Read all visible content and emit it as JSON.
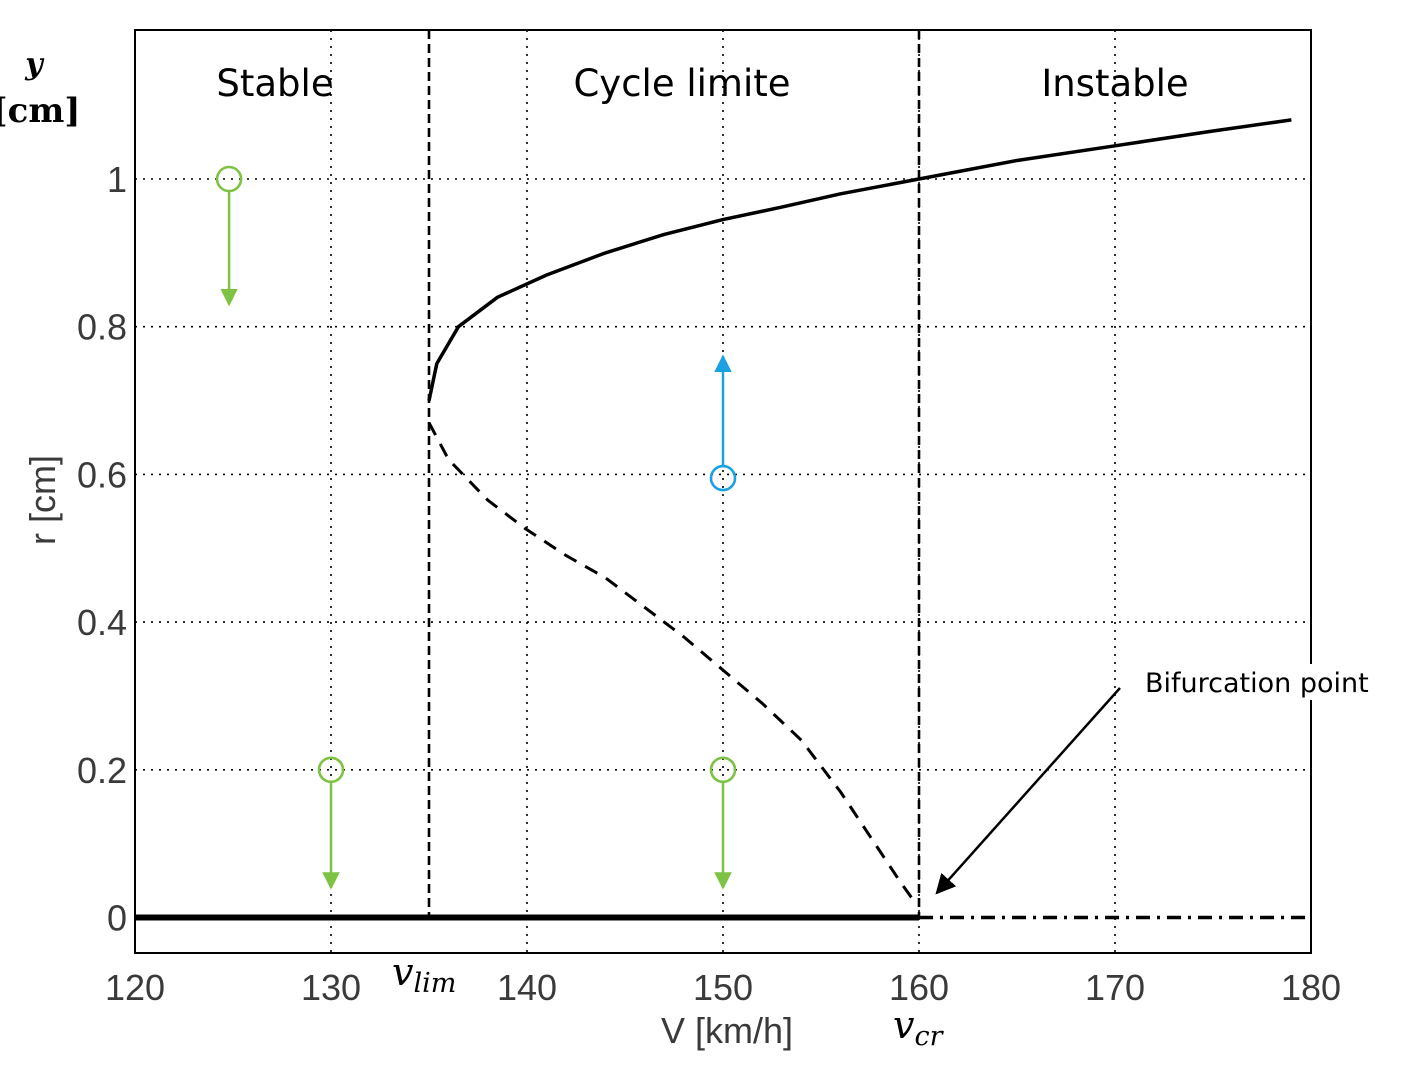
{
  "chart_data": {
    "type": "line",
    "xlabel": "V [km/h]",
    "ylabel": "r [cm]",
    "ylabel_alt": {
      "symbol": "y",
      "unit": "[cm]"
    },
    "xlim": [
      120,
      180
    ],
    "ylim": [
      -0.05,
      1.2
    ],
    "xticks": [
      "120",
      "130",
      "140",
      "150",
      "160",
      "170",
      "180"
    ],
    "yticks": [
      "0",
      "0.2",
      "0.4",
      "0.6",
      "0.8",
      "1"
    ],
    "grid": true,
    "regions": [
      {
        "label": "Stable"
      },
      {
        "label": "Cycle limite"
      },
      {
        "label": "Instable"
      }
    ],
    "v_lim": {
      "value": 135,
      "symbol": "v",
      "subscript": "lim"
    },
    "v_cr": {
      "value": 160,
      "symbol": "v",
      "subscript": "cr"
    },
    "series": [
      {
        "style": "solid",
        "color": "#000000",
        "x": [
          135,
          135.4,
          136.5,
          138.5,
          141,
          144,
          147,
          150,
          153,
          156,
          160,
          165,
          170,
          175,
          179
        ],
        "y": [
          0.7,
          0.75,
          0.8,
          0.84,
          0.87,
          0.9,
          0.925,
          0.945,
          0.962,
          0.98,
          1.0,
          1.025,
          1.045,
          1.065,
          1.08
        ]
      },
      {
        "style": "dashed",
        "color": "#000000",
        "x": [
          135,
          136,
          138,
          140,
          142,
          144,
          146,
          148,
          150,
          152,
          154,
          156,
          158,
          159,
          159.8
        ],
        "y": [
          0.67,
          0.62,
          0.565,
          0.525,
          0.49,
          0.46,
          0.42,
          0.38,
          0.335,
          0.29,
          0.24,
          0.17,
          0.09,
          0.05,
          0.02
        ]
      },
      {
        "style": "solid-thick",
        "color": "#000000",
        "x": [
          120,
          160
        ],
        "y": [
          0,
          0
        ]
      },
      {
        "style": "dash-dot",
        "color": "#000000",
        "x": [
          160,
          180
        ],
        "y": [
          0,
          0
        ]
      }
    ],
    "markers": [
      {
        "x": 124.8,
        "y": 1.0,
        "direction": "down",
        "arrow_to": 0.83,
        "color": "#7dc242"
      },
      {
        "x": 130,
        "y": 0.2,
        "direction": "down",
        "arrow_to": 0.04,
        "color": "#7dc242"
      },
      {
        "x": 150,
        "y": 0.2,
        "direction": "down",
        "arrow_to": 0.04,
        "color": "#7dc242"
      },
      {
        "x": 150,
        "y": 0.595,
        "direction": "up",
        "arrow_to": 0.76,
        "color": "#1ba1e2"
      }
    ],
    "annotations": [
      {
        "text": "Bifurcation point",
        "arrow_to_x": 160.6,
        "arrow_to_y": 0.025,
        "color": "#000000"
      }
    ]
  }
}
